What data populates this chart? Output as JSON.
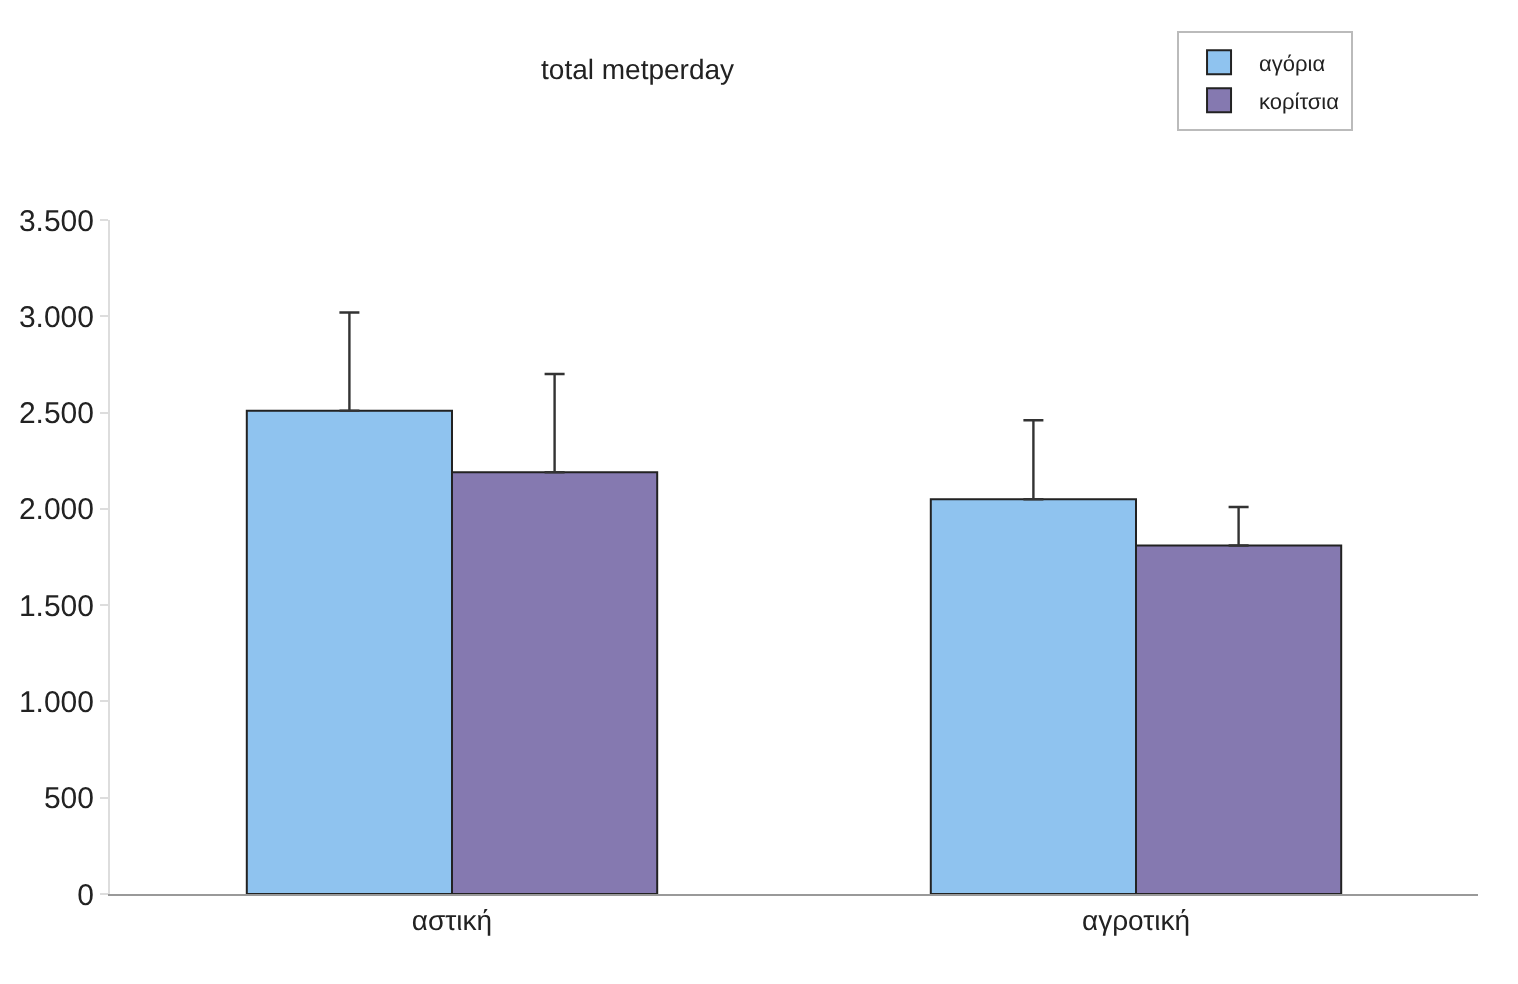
{
  "chart_data": {
    "type": "bar",
    "title": "total metperday",
    "categories": [
      "αστική",
      "αγροτική"
    ],
    "series": [
      {
        "name": "αγόρια",
        "color": "#8fc3ef",
        "values": [
          2510,
          2050
        ],
        "errors": [
          [
            2510,
            3020
          ],
          [
            2050,
            2460
          ]
        ]
      },
      {
        "name": "κορίτσια",
        "color": "#8579b0",
        "values": [
          2190,
          1810
        ],
        "errors": [
          [
            2190,
            2700
          ],
          [
            1810,
            2010
          ]
        ]
      }
    ],
    "ylim": [
      0,
      3500
    ],
    "yticks": [
      0,
      500,
      {
        "value": 1000,
        "label": "1.000"
      },
      {
        "value": 1500,
        "label": "1.500"
      },
      {
        "value": 2000,
        "label": "2.000"
      },
      {
        "value": 2500,
        "label": "2.500"
      },
      {
        "value": 3000,
        "label": "3.000"
      },
      {
        "value": 3500,
        "label": "3.500"
      }
    ],
    "grid": false,
    "legend": "top right"
  }
}
